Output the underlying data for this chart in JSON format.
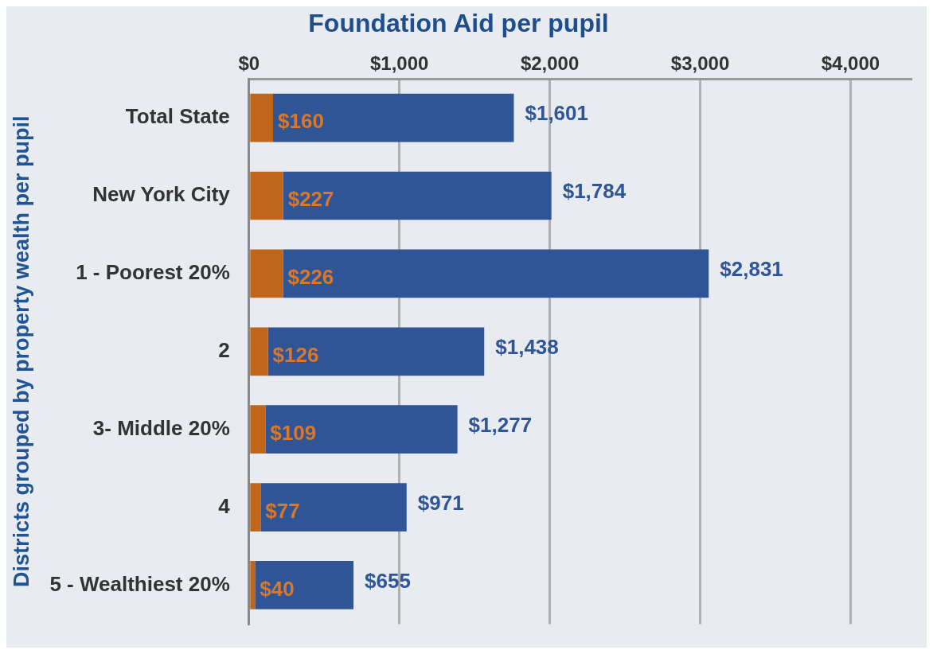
{
  "chart_data": {
    "type": "bar",
    "orientation": "horizontal",
    "stacked": true,
    "title": "Foundation Aid per pupil",
    "ylabel": "Districts grouped by property wealth per pupil",
    "categories": [
      "Total State",
      "New York City",
      "1 - Poorest 20%",
      "2",
      "3- Middle 20%",
      "4",
      "5 - Wealthiest 20%"
    ],
    "series": [
      {
        "color": "#c0661a",
        "values": [
          160,
          227,
          226,
          126,
          109,
          77,
          40
        ],
        "value_labels": [
          "$160",
          "$227",
          "$226",
          "$126",
          "$109",
          "$77",
          "$40"
        ]
      },
      {
        "color": "#2f5597",
        "values": [
          1601,
          1784,
          2831,
          1438,
          1277,
          971,
          655
        ],
        "value_labels": [
          "$1,601",
          "$1,784",
          "$2,831",
          "$1,438",
          "$1,277",
          "$971",
          "$655"
        ]
      }
    ],
    "xlim": [
      0,
      4400
    ],
    "xticks": [
      {
        "value": 0,
        "label": "$0"
      },
      {
        "value": 1000,
        "label": "$1,000"
      },
      {
        "value": 2000,
        "label": "$2,000"
      },
      {
        "value": 3000,
        "label": "$3,000"
      },
      {
        "value": 4000,
        "label": "$4,000"
      }
    ],
    "grid": "x",
    "legend": false
  }
}
